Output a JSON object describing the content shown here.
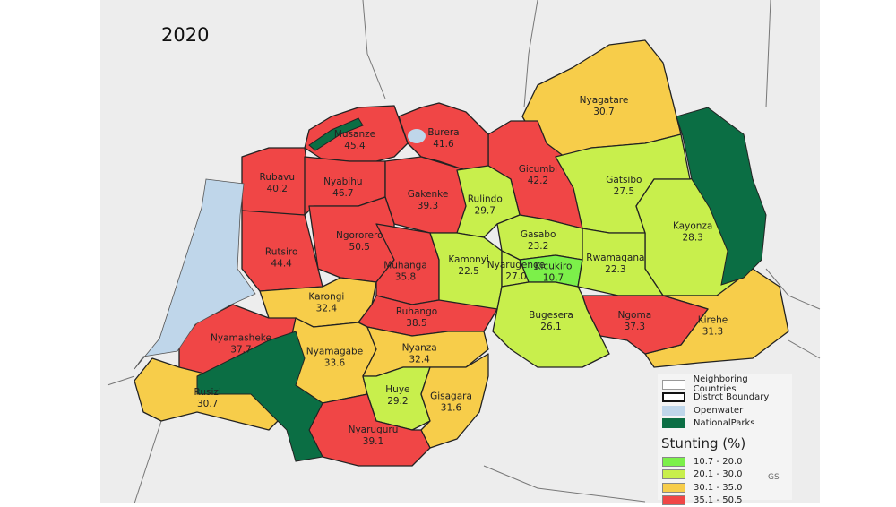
{
  "title": "2020",
  "colors": {
    "class_1": "#7cf04a",
    "class_2": "#c8ef4c",
    "class_3": "#f7cd4a",
    "class_4": "#f04646",
    "openwater": "#bfd6ea",
    "national_parks": "#0b6e44",
    "background": "#ededed"
  },
  "districts": [
    {
      "name": "Nyagatare",
      "value": "30.7"
    },
    {
      "name": "Gicumbi",
      "value": "42.2"
    },
    {
      "name": "Burera",
      "value": "41.6"
    },
    {
      "name": "Musanze",
      "value": "45.4"
    },
    {
      "name": "Rubavu",
      "value": "40.2"
    },
    {
      "name": "Nyabihu",
      "value": "46.7"
    },
    {
      "name": "Gakenke",
      "value": "39.3"
    },
    {
      "name": "Rulindo",
      "value": "29.7"
    },
    {
      "name": "Ngororero",
      "value": "50.5"
    },
    {
      "name": "Rutsiro",
      "value": "44.4"
    },
    {
      "name": "Muhanga",
      "value": "35.8"
    },
    {
      "name": "Kamonyi",
      "value": "22.5"
    },
    {
      "name": "Gasabo",
      "value": "23.2"
    },
    {
      "name": "Nyarugenge",
      "value": "27.0"
    },
    {
      "name": "Kicukiro",
      "value": "10.7"
    },
    {
      "name": "Gatsibo",
      "value": "27.5"
    },
    {
      "name": "Kayonza",
      "value": "28.3"
    },
    {
      "name": "Rwamagana",
      "value": "22.3"
    },
    {
      "name": "Kirehe",
      "value": "31.3"
    },
    {
      "name": "Ngoma",
      "value": "37.3"
    },
    {
      "name": "Bugesera",
      "value": "26.1"
    },
    {
      "name": "Karongi",
      "value": "32.4"
    },
    {
      "name": "Ruhango",
      "value": "38.5"
    },
    {
      "name": "Nyamasheke",
      "value": "37.7"
    },
    {
      "name": "Nyamagabe",
      "value": "33.6"
    },
    {
      "name": "Nyanza",
      "value": "32.4"
    },
    {
      "name": "Huye",
      "value": "29.2"
    },
    {
      "name": "Gisagara",
      "value": "31.6"
    },
    {
      "name": "Nyaruguru",
      "value": "39.1"
    },
    {
      "name": "Rusizi",
      "value": "30.7"
    }
  ],
  "legend": {
    "layers": [
      "Neighboring Countries",
      "Distrct Boundary",
      "Openwater",
      "NationalParks"
    ],
    "title": "Stunting (%)",
    "classes": [
      {
        "label": "10.7 - 20.0",
        "min": 10.7,
        "max": 20.0
      },
      {
        "label": "20.1 - 30.0",
        "min": 20.1,
        "max": 30.0
      },
      {
        "label": "30.1 - 35.0",
        "min": 30.1,
        "max": 35.0
      },
      {
        "label": "35.1 - 50.5",
        "min": 35.1,
        "max": 50.5
      }
    ]
  },
  "credit": "GS"
}
